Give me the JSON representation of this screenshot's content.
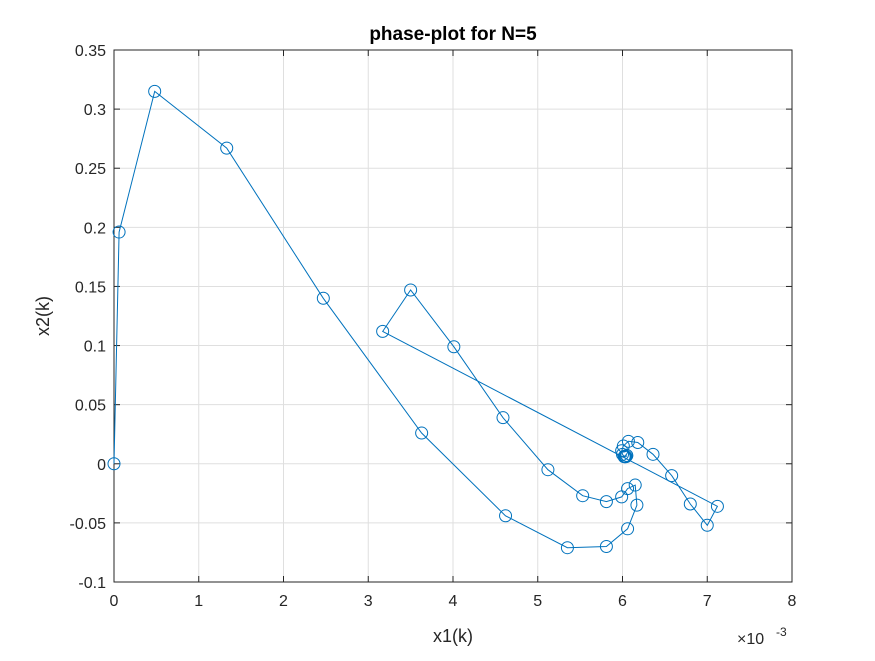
{
  "chart_data": {
    "type": "line",
    "title": "phase-plot for N=5",
    "xlabel": "x1(k)",
    "ylabel": "x2(k)",
    "x_exponent_label": "×10",
    "x_exponent_value": "-3",
    "xlim": [
      0,
      8
    ],
    "ylim": [
      -0.1,
      0.35
    ],
    "xticks": [
      0,
      1,
      2,
      3,
      4,
      5,
      6,
      7,
      8
    ],
    "xtick_labels": [
      "0",
      "1",
      "2",
      "3",
      "4",
      "5",
      "6",
      "7",
      "8"
    ],
    "yticks": [
      -0.1,
      -0.05,
      0,
      0.05,
      0.1,
      0.15,
      0.2,
      0.25,
      0.3,
      0.35
    ],
    "ytick_labels": [
      "-0.1",
      "-0.05",
      "0",
      "0.05",
      "0.1",
      "0.15",
      "0.2",
      "0.25",
      "0.3",
      "0.35"
    ],
    "grid": true,
    "marker": "circle",
    "color": "#0072BD",
    "series": [
      {
        "x": [
          0.0,
          0.06,
          0.48,
          1.33,
          2.47,
          3.63,
          4.62,
          5.35,
          5.81,
          6.06,
          6.17,
          6.15,
          6.06,
          5.99,
          5.81,
          5.53,
          5.12,
          4.59,
          4.01,
          3.5,
          3.17,
          7.12,
          7.0,
          6.8,
          6.58,
          6.36,
          6.18,
          6.07,
          6.01,
          5.99,
          6.0,
          6.02,
          6.04,
          6.05,
          6.05,
          6.04,
          6.03,
          6.02,
          6.03
        ],
        "y": [
          0.0,
          0.196,
          0.315,
          0.267,
          0.14,
          0.026,
          -0.044,
          -0.071,
          -0.07,
          -0.055,
          -0.035,
          -0.018,
          -0.021,
          -0.028,
          -0.032,
          -0.027,
          -0.005,
          0.039,
          0.099,
          0.147,
          0.112,
          -0.036,
          -0.052,
          -0.034,
          -0.01,
          0.008,
          0.018,
          0.019,
          0.015,
          0.011,
          0.008,
          0.006,
          0.006,
          0.007,
          0.007,
          0.006,
          0.006,
          0.006,
          0.006
        ]
      }
    ]
  }
}
